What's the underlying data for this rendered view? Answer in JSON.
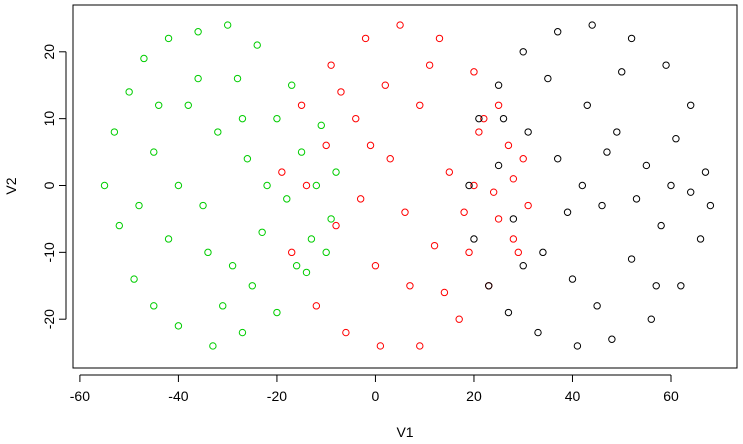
{
  "chart_data": {
    "type": "scatter",
    "x_label": "V1",
    "y_label": "V2",
    "xlim": [
      -61.4,
      73.4
    ],
    "ylim": [
      -27.3,
      27.0
    ],
    "xticks": [
      -60,
      -40,
      -20,
      0,
      20,
      40,
      60
    ],
    "yticks": [
      -20,
      -10,
      0,
      10,
      20
    ],
    "series": [
      {
        "color": "#00cd00",
        "x": [
          -55,
          -53,
          -52,
          -50,
          -49,
          -47,
          -45,
          -42,
          -40,
          -36,
          -33,
          -30,
          -27,
          -24,
          -20,
          -17,
          -14,
          -11,
          -9,
          -8,
          -45,
          -42,
          -38,
          -35,
          -32,
          -29,
          -26,
          -23,
          -20,
          -18,
          -15,
          -13,
          -40,
          -36,
          -28,
          -25,
          -48,
          -44,
          -31,
          -22,
          -12,
          -10,
          -16,
          -34,
          -27
        ],
        "y": [
          0,
          8,
          -6,
          14,
          -14,
          19,
          -18,
          22,
          -21,
          23,
          -24,
          24,
          -22,
          21,
          -19,
          15,
          -13,
          9,
          -5,
          2,
          5,
          -8,
          12,
          -3,
          8,
          -12,
          4,
          -7,
          10,
          -2,
          5,
          -8,
          0,
          16,
          16,
          -15,
          -3,
          12,
          -18,
          0,
          0,
          -10,
          -12,
          -10,
          10
        ]
      },
      {
        "color": "#ff0000",
        "x": [
          -19,
          -17,
          -15,
          -12,
          -9,
          -6,
          -2,
          1,
          5,
          9,
          13,
          17,
          20,
          23,
          25,
          28,
          30,
          31,
          -14,
          -10,
          -8,
          -4,
          0,
          3,
          6,
          9,
          12,
          15,
          18,
          21,
          24,
          27,
          29,
          -3,
          2,
          7,
          11,
          14,
          -7,
          20,
          25,
          22,
          28,
          19,
          -1
        ],
        "y": [
          2,
          -10,
          12,
          -18,
          18,
          -22,
          22,
          -24,
          24,
          -24,
          22,
          -20,
          17,
          -15,
          12,
          -8,
          4,
          -3,
          0,
          6,
          -6,
          10,
          -12,
          4,
          -4,
          12,
          -9,
          2,
          -4,
          8,
          -1,
          6,
          -10,
          -2,
          15,
          -15,
          18,
          -16,
          14,
          0,
          -5,
          10,
          1,
          -10,
          6
        ]
      },
      {
        "color": "#000000",
        "x": [
          19,
          20,
          21,
          23,
          25,
          27,
          30,
          33,
          37,
          41,
          44,
          48,
          52,
          56,
          59,
          62,
          64,
          66,
          67,
          68,
          25,
          28,
          31,
          34,
          37,
          40,
          43,
          46,
          49,
          52,
          55,
          58,
          61,
          64,
          35,
          45,
          50,
          57,
          39,
          42,
          47,
          53,
          60,
          30,
          26
        ],
        "y": [
          0,
          -8,
          10,
          -15,
          15,
          -19,
          20,
          -22,
          23,
          -24,
          24,
          -23,
          22,
          -20,
          18,
          -15,
          12,
          -8,
          2,
          -3,
          3,
          -5,
          8,
          -10,
          4,
          -14,
          12,
          -3,
          8,
          -11,
          3,
          -6,
          7,
          -1,
          16,
          -18,
          17,
          -15,
          -4,
          0,
          5,
          -2,
          0,
          -12,
          10
        ]
      }
    ]
  }
}
